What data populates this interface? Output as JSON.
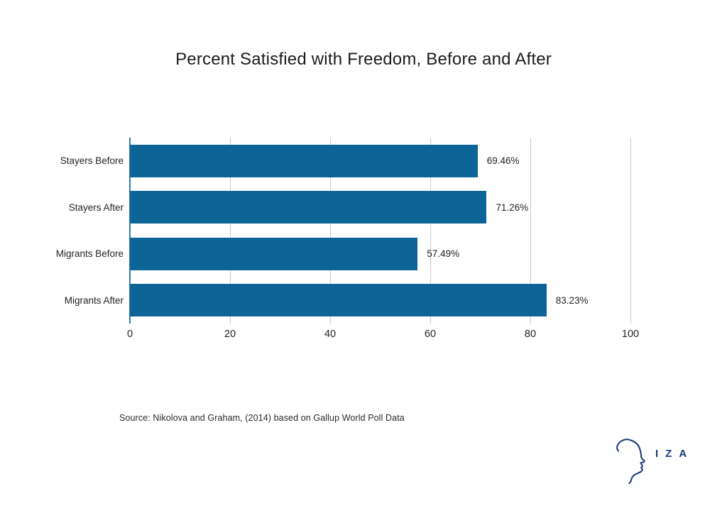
{
  "title": "Percent Satisfied with Freedom, Before and After",
  "source_note": "Source: Nikolova and Graham, (2014) based on Gallup World Poll Data",
  "logo": {
    "text": "IZA",
    "icon": "head-profile-icon"
  },
  "colors": {
    "bar": "#0d6497",
    "axis": "#2b7fb4",
    "gridline": "#c9c9c9",
    "logo": "#1e3a7c",
    "text": "#231f20"
  },
  "chart_data": {
    "type": "bar",
    "orientation": "horizontal",
    "title": "Percent Satisfied with Freedom, Before and After",
    "categories": [
      "Stayers Before",
      "Stayers After",
      "Migrants Before",
      "Migrants After"
    ],
    "values": [
      69.46,
      71.26,
      57.49,
      83.23
    ],
    "value_labels": [
      "69.46%",
      "71.26%",
      "57.49%",
      "83.23%"
    ],
    "xlabel": "",
    "ylabel": "",
    "xlim": [
      0,
      100
    ],
    "xticks": [
      0,
      20,
      40,
      60,
      80,
      100
    ],
    "grid": true,
    "gridlines": "vertical",
    "legend": "none",
    "annotation": "Source: Nikolova and Graham, (2014) based on Gallup World Poll Data"
  }
}
